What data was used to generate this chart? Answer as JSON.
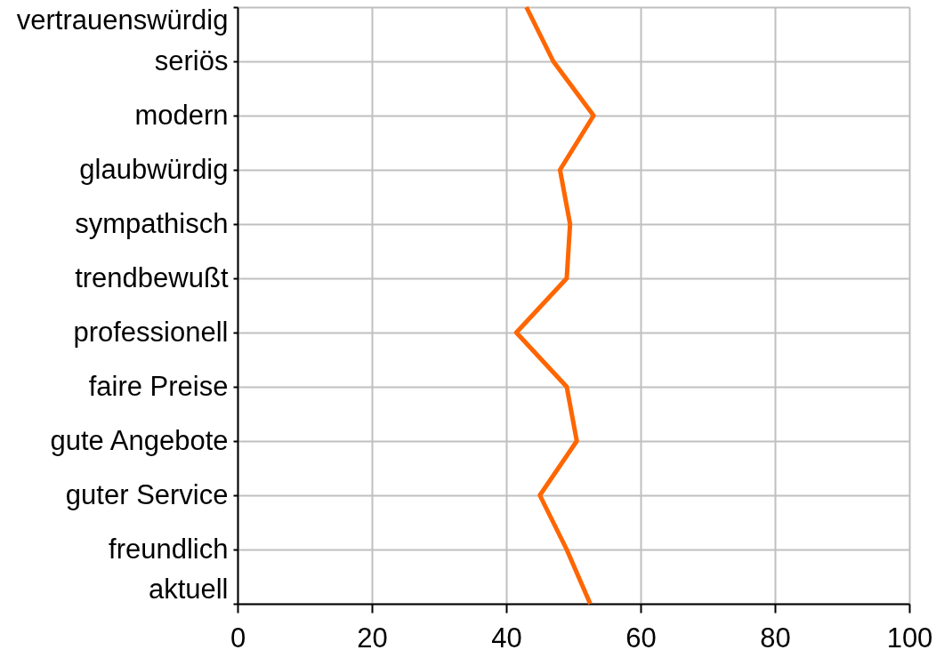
{
  "chart_data": {
    "type": "line",
    "orientation": "horizontal",
    "categories": [
      "vertrauenswürdig",
      "seriös",
      "modern",
      "glaubwürdig",
      "sympathisch",
      "trendbewußt",
      "professionell",
      "faire Preise",
      "gute Angebote",
      "guter Service",
      "freundlich",
      "aktuell"
    ],
    "series": [
      {
        "color": "#ff6600",
        "values": [
          43,
          47,
          53,
          48,
          49.5,
          49,
          41.5,
          49,
          50.5,
          45,
          49,
          52.5
        ]
      }
    ],
    "xlim": [
      0,
      100
    ],
    "xticks": [
      0,
      20,
      40,
      60,
      80,
      100
    ],
    "grid": true
  }
}
